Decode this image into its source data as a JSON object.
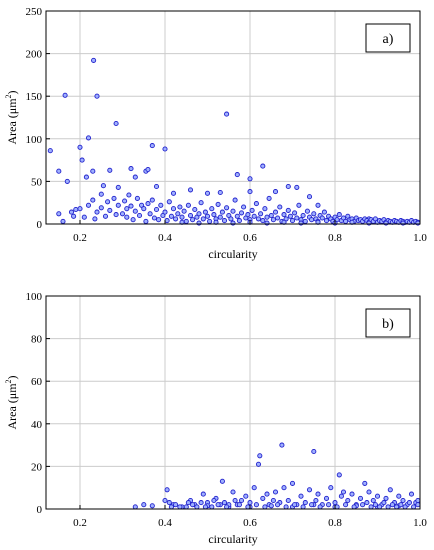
{
  "chart_data": [
    {
      "type": "scatter",
      "panel_label": "a)",
      "xlabel": "circularity",
      "ylabel_main": "Area (",
      "ylabel_unit": "μm",
      "ylabel_sup": "2",
      "ylabel_close": ")",
      "xlim": [
        0.12,
        1.0
      ],
      "ylim": [
        0,
        250
      ],
      "xticks": [
        "0.2",
        "0.4",
        "0.6",
        "0.8",
        "1.0"
      ],
      "yticks": [
        "0",
        "50",
        "100",
        "150",
        "200",
        "250"
      ],
      "grid": true,
      "marker_color": "#2222cc",
      "points": [
        [
          0.13,
          86
        ],
        [
          0.15,
          62
        ],
        [
          0.165,
          151
        ],
        [
          0.17,
          50
        ],
        [
          0.19,
          17
        ],
        [
          0.2,
          90
        ],
        [
          0.205,
          75
        ],
        [
          0.215,
          55
        ],
        [
          0.22,
          101
        ],
        [
          0.23,
          62
        ],
        [
          0.232,
          192
        ],
        [
          0.24,
          150
        ],
        [
          0.25,
          35
        ],
        [
          0.27,
          63
        ],
        [
          0.285,
          118
        ],
        [
          0.29,
          43
        ],
        [
          0.31,
          8
        ],
        [
          0.32,
          65
        ],
        [
          0.33,
          55
        ],
        [
          0.345,
          22
        ],
        [
          0.355,
          62
        ],
        [
          0.36,
          64
        ],
        [
          0.37,
          92
        ],
        [
          0.38,
          44
        ],
        [
          0.4,
          88
        ],
        [
          0.42,
          36
        ],
        [
          0.46,
          40
        ],
        [
          0.5,
          36
        ],
        [
          0.53,
          37
        ],
        [
          0.545,
          129
        ],
        [
          0.57,
          58
        ],
        [
          0.6,
          38
        ],
        [
          0.6,
          53
        ],
        [
          0.63,
          68
        ],
        [
          0.66,
          38
        ],
        [
          0.69,
          44
        ],
        [
          0.71,
          43
        ],
        [
          0.74,
          32
        ],
        [
          0.76,
          22
        ],
        [
          0.88,
          6
        ],
        [
          0.15,
          12
        ],
        [
          0.16,
          3
        ],
        [
          0.18,
          14
        ],
        [
          0.185,
          9
        ],
        [
          0.2,
          18
        ],
        [
          0.21,
          8
        ],
        [
          0.22,
          22
        ],
        [
          0.23,
          28
        ],
        [
          0.235,
          6
        ],
        [
          0.24,
          14
        ],
        [
          0.25,
          19
        ],
        [
          0.255,
          45
        ],
        [
          0.26,
          9
        ],
        [
          0.265,
          26
        ],
        [
          0.27,
          16
        ],
        [
          0.28,
          30
        ],
        [
          0.285,
          11
        ],
        [
          0.29,
          22
        ],
        [
          0.3,
          12
        ],
        [
          0.305,
          27
        ],
        [
          0.31,
          18
        ],
        [
          0.315,
          34
        ],
        [
          0.32,
          21
        ],
        [
          0.325,
          5
        ],
        [
          0.33,
          15
        ],
        [
          0.335,
          30
        ],
        [
          0.34,
          10
        ],
        [
          0.35,
          18
        ],
        [
          0.355,
          3
        ],
        [
          0.36,
          24
        ],
        [
          0.365,
          12
        ],
        [
          0.37,
          28
        ],
        [
          0.375,
          7
        ],
        [
          0.38,
          17
        ],
        [
          0.385,
          5
        ],
        [
          0.39,
          22
        ],
        [
          0.395,
          10
        ],
        [
          0.4,
          14
        ],
        [
          0.405,
          4
        ],
        [
          0.41,
          26
        ],
        [
          0.415,
          9
        ],
        [
          0.42,
          18
        ],
        [
          0.425,
          6
        ],
        [
          0.43,
          12
        ],
        [
          0.435,
          20
        ],
        [
          0.44,
          8
        ],
        [
          0.445,
          15
        ],
        [
          0.45,
          3
        ],
        [
          0.455,
          22
        ],
        [
          0.46,
          10
        ],
        [
          0.465,
          5
        ],
        [
          0.47,
          17
        ],
        [
          0.475,
          8
        ],
        [
          0.48,
          12
        ],
        [
          0.485,
          25
        ],
        [
          0.49,
          6
        ],
        [
          0.495,
          14
        ],
        [
          0.5,
          9
        ],
        [
          0.505,
          3
        ],
        [
          0.51,
          18
        ],
        [
          0.515,
          11
        ],
        [
          0.52,
          6
        ],
        [
          0.525,
          23
        ],
        [
          0.53,
          8
        ],
        [
          0.535,
          14
        ],
        [
          0.54,
          4
        ],
        [
          0.545,
          19
        ],
        [
          0.55,
          10
        ],
        [
          0.555,
          6
        ],
        [
          0.56,
          15
        ],
        [
          0.565,
          28
        ],
        [
          0.57,
          9
        ],
        [
          0.575,
          4
        ],
        [
          0.58,
          13
        ],
        [
          0.585,
          20
        ],
        [
          0.59,
          7
        ],
        [
          0.595,
          11
        ],
        [
          0.6,
          5
        ],
        [
          0.605,
          16
        ],
        [
          0.61,
          9
        ],
        [
          0.615,
          24
        ],
        [
          0.62,
          6
        ],
        [
          0.625,
          12
        ],
        [
          0.63,
          4
        ],
        [
          0.635,
          18
        ],
        [
          0.64,
          8
        ],
        [
          0.645,
          30
        ],
        [
          0.65,
          10
        ],
        [
          0.655,
          5
        ],
        [
          0.66,
          14
        ],
        [
          0.665,
          7
        ],
        [
          0.67,
          20
        ],
        [
          0.675,
          3
        ],
        [
          0.68,
          11
        ],
        [
          0.685,
          6
        ],
        [
          0.69,
          16
        ],
        [
          0.695,
          9
        ],
        [
          0.7,
          4
        ],
        [
          0.705,
          13
        ],
        [
          0.71,
          7
        ],
        [
          0.715,
          22
        ],
        [
          0.72,
          5
        ],
        [
          0.725,
          10
        ],
        [
          0.73,
          3
        ],
        [
          0.735,
          15
        ],
        [
          0.74,
          8
        ],
        [
          0.745,
          5
        ],
        [
          0.75,
          12
        ],
        [
          0.755,
          6
        ],
        [
          0.76,
          3
        ],
        [
          0.765,
          10
        ],
        [
          0.77,
          7
        ],
        [
          0.775,
          14
        ],
        [
          0.78,
          4
        ],
        [
          0.785,
          9
        ],
        [
          0.79,
          6
        ],
        [
          0.795,
          3
        ],
        [
          0.8,
          8
        ],
        [
          0.805,
          5
        ],
        [
          0.81,
          11
        ],
        [
          0.815,
          4
        ],
        [
          0.82,
          7
        ],
        [
          0.825,
          3
        ],
        [
          0.83,
          9
        ],
        [
          0.835,
          5
        ],
        [
          0.84,
          6
        ],
        [
          0.845,
          3
        ],
        [
          0.85,
          7
        ],
        [
          0.855,
          4
        ],
        [
          0.86,
          5
        ],
        [
          0.865,
          3
        ],
        [
          0.87,
          6
        ],
        [
          0.875,
          4
        ],
        [
          0.88,
          2
        ],
        [
          0.885,
          5
        ],
        [
          0.89,
          3
        ],
        [
          0.895,
          6
        ],
        [
          0.9,
          2
        ],
        [
          0.905,
          4
        ],
        [
          0.91,
          3
        ],
        [
          0.915,
          5
        ],
        [
          0.92,
          2
        ],
        [
          0.925,
          4
        ],
        [
          0.93,
          3
        ],
        [
          0.935,
          2
        ],
        [
          0.94,
          4
        ],
        [
          0.945,
          3
        ],
        [
          0.95,
          2
        ],
        [
          0.955,
          4
        ],
        [
          0.96,
          3
        ],
        [
          0.965,
          2
        ],
        [
          0.97,
          3
        ],
        [
          0.975,
          2
        ],
        [
          0.98,
          4
        ],
        [
          0.985,
          2
        ],
        [
          0.99,
          3
        ],
        [
          0.995,
          2
        ],
        [
          0.44,
          2
        ],
        [
          0.48,
          1
        ],
        [
          0.52,
          2
        ],
        [
          0.56,
          1
        ],
        [
          0.6,
          2
        ],
        [
          0.64,
          1
        ],
        [
          0.68,
          2
        ],
        [
          0.72,
          1
        ],
        [
          0.76,
          2
        ],
        [
          0.8,
          1
        ],
        [
          0.84,
          2
        ],
        [
          0.88,
          1
        ],
        [
          0.92,
          1
        ],
        [
          0.96,
          1
        ],
        [
          0.995,
          1
        ]
      ]
    },
    {
      "type": "scatter",
      "panel_label": "b)",
      "xlabel": "circularity",
      "ylabel_main": "Area (",
      "ylabel_unit": "μm",
      "ylabel_sup": "2",
      "ylabel_close": ")",
      "xlim": [
        0.12,
        1.0
      ],
      "ylim": [
        0,
        100
      ],
      "xticks": [
        "0.2",
        "0.4",
        "0.6",
        "0.8",
        "1.0"
      ],
      "yticks": [
        "0",
        "20",
        "40",
        "60",
        "80",
        "100"
      ],
      "grid": true,
      "marker_color": "#2222cc",
      "points": [
        [
          0.33,
          1
        ],
        [
          0.35,
          2
        ],
        [
          0.37,
          1.5
        ],
        [
          0.4,
          4
        ],
        [
          0.405,
          9
        ],
        [
          0.41,
          3
        ],
        [
          0.42,
          2
        ],
        [
          0.44,
          1
        ],
        [
          0.46,
          4
        ],
        [
          0.47,
          2
        ],
        [
          0.49,
          7
        ],
        [
          0.5,
          3
        ],
        [
          0.51,
          1
        ],
        [
          0.52,
          5
        ],
        [
          0.53,
          2
        ],
        [
          0.535,
          13
        ],
        [
          0.54,
          3
        ],
        [
          0.55,
          1
        ],
        [
          0.56,
          8
        ],
        [
          0.57,
          2
        ],
        [
          0.58,
          4
        ],
        [
          0.59,
          6
        ],
        [
          0.6,
          3
        ],
        [
          0.61,
          10
        ],
        [
          0.62,
          21
        ],
        [
          0.623,
          25
        ],
        [
          0.63,
          5
        ],
        [
          0.64,
          7
        ],
        [
          0.645,
          2
        ],
        [
          0.66,
          8
        ],
        [
          0.67,
          3
        ],
        [
          0.675,
          30
        ],
        [
          0.68,
          10
        ],
        [
          0.69,
          4
        ],
        [
          0.7,
          12
        ],
        [
          0.71,
          2
        ],
        [
          0.72,
          6
        ],
        [
          0.73,
          3
        ],
        [
          0.74,
          9
        ],
        [
          0.75,
          27
        ],
        [
          0.755,
          4
        ],
        [
          0.76,
          7
        ],
        [
          0.77,
          2
        ],
        [
          0.78,
          5
        ],
        [
          0.79,
          10
        ],
        [
          0.8,
          3
        ],
        [
          0.81,
          16
        ],
        [
          0.815,
          6
        ],
        [
          0.82,
          8
        ],
        [
          0.83,
          4
        ],
        [
          0.84,
          7
        ],
        [
          0.85,
          2
        ],
        [
          0.86,
          5
        ],
        [
          0.87,
          12
        ],
        [
          0.875,
          3
        ],
        [
          0.88,
          8
        ],
        [
          0.89,
          4
        ],
        [
          0.9,
          6
        ],
        [
          0.91,
          2
        ],
        [
          0.92,
          5
        ],
        [
          0.93,
          9
        ],
        [
          0.94,
          3
        ],
        [
          0.95,
          6
        ],
        [
          0.96,
          4
        ],
        [
          0.97,
          2
        ],
        [
          0.98,
          7
        ],
        [
          0.99,
          3
        ],
        [
          0.45,
          1
        ],
        [
          0.5,
          1.5
        ],
        [
          0.55,
          2
        ],
        [
          0.6,
          1
        ],
        [
          0.65,
          1.5
        ],
        [
          0.7,
          1
        ],
        [
          0.75,
          2
        ],
        [
          0.8,
          1
        ],
        [
          0.85,
          1.5
        ],
        [
          0.9,
          1
        ],
        [
          0.95,
          1.5
        ],
        [
          0.995,
          2
        ],
        [
          0.995,
          4
        ],
        [
          0.985,
          1
        ],
        [
          0.975,
          3
        ],
        [
          0.965,
          1
        ],
        [
          0.955,
          2
        ],
        [
          0.945,
          1
        ],
        [
          0.935,
          2
        ],
        [
          0.925,
          1
        ],
        [
          0.915,
          3
        ],
        [
          0.905,
          1
        ],
        [
          0.895,
          2
        ],
        [
          0.885,
          1
        ],
        [
          0.865,
          2
        ],
        [
          0.845,
          1
        ],
        [
          0.825,
          2
        ],
        [
          0.805,
          1
        ],
        [
          0.785,
          2
        ],
        [
          0.765,
          1
        ],
        [
          0.745,
          2
        ],
        [
          0.725,
          1
        ],
        [
          0.705,
          2
        ],
        [
          0.685,
          1
        ],
        [
          0.665,
          2
        ],
        [
          0.655,
          4
        ],
        [
          0.635,
          1
        ],
        [
          0.615,
          2
        ],
        [
          0.595,
          1
        ],
        [
          0.575,
          2
        ],
        [
          0.565,
          4
        ],
        [
          0.545,
          1
        ],
        [
          0.525,
          2
        ],
        [
          0.515,
          4
        ],
        [
          0.495,
          1
        ],
        [
          0.485,
          3
        ],
        [
          0.475,
          1
        ],
        [
          0.465,
          2
        ],
        [
          0.455,
          3
        ],
        [
          0.435,
          1
        ],
        [
          0.425,
          2
        ],
        [
          0.415,
          1
        ]
      ]
    }
  ]
}
